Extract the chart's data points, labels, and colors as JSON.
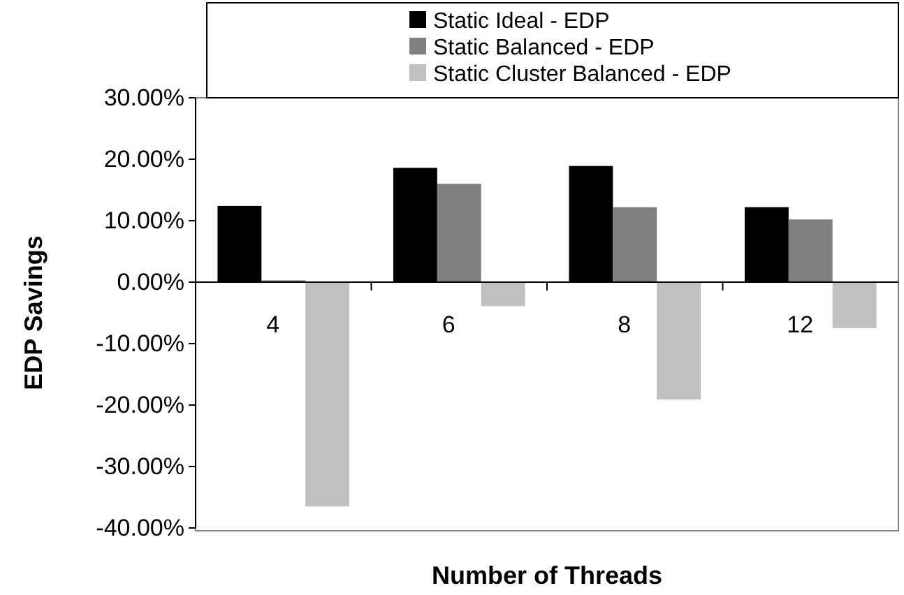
{
  "chart_data": {
    "type": "bar",
    "xlabel": "Number of Threads",
    "ylabel": "EDP Savings",
    "categories": [
      "4",
      "6",
      "8",
      "12"
    ],
    "series": [
      {
        "name": "Static Ideal - EDP",
        "color": "#000000",
        "values": [
          12.4,
          18.6,
          18.9,
          12.2
        ]
      },
      {
        "name": "Static Balanced - EDP",
        "color": "#808080",
        "values": [
          0.3,
          16.0,
          12.2,
          10.2
        ]
      },
      {
        "name": "Static Cluster Balanced - EDP",
        "color": "#c0c0c0",
        "values": [
          -36.5,
          -3.9,
          -19.1,
          -7.5
        ]
      }
    ],
    "ylim": [
      -40,
      30
    ],
    "yticks": [
      {
        "value": -40,
        "label": "-40.00%"
      },
      {
        "value": -30,
        "label": "-30.00%"
      },
      {
        "value": -20,
        "label": "-20.00%"
      },
      {
        "value": -10,
        "label": "-10.00%"
      },
      {
        "value": 0,
        "label": "0.00%"
      },
      {
        "value": 10,
        "label": "10.00%"
      },
      {
        "value": 20,
        "label": "20.00%"
      },
      {
        "value": 30,
        "label": "30.00%"
      }
    ],
    "legend": "top",
    "grid": false
  }
}
